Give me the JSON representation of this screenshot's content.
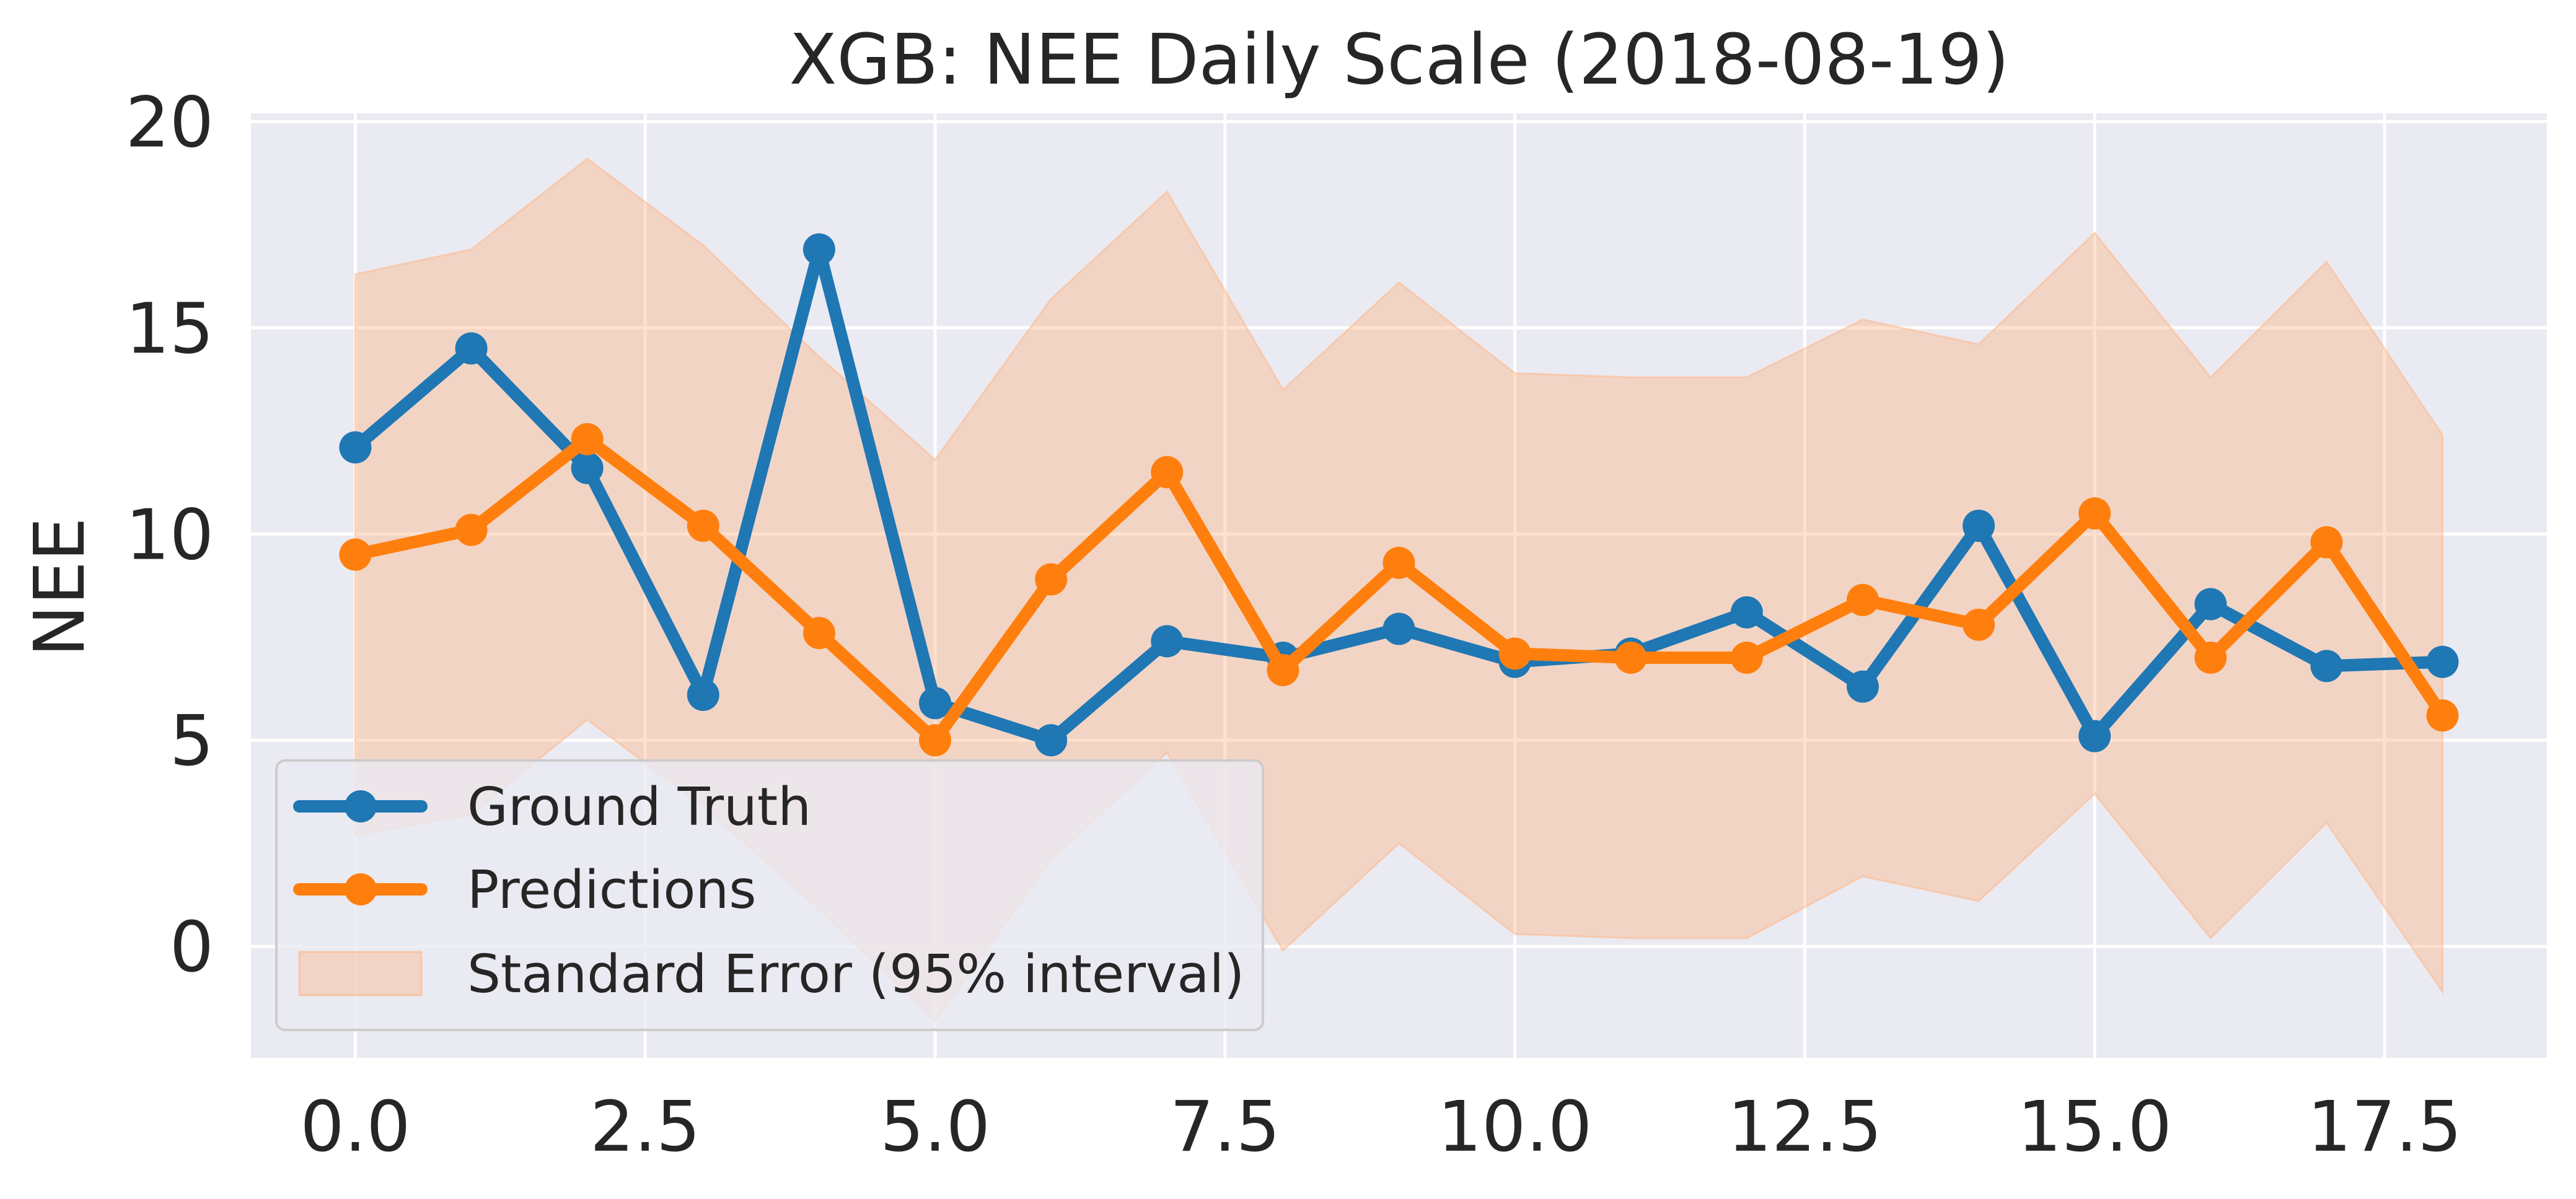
{
  "chart_data": {
    "type": "line",
    "title": "XGB: NEE Daily Scale (2018-08-19)",
    "xlabel": "",
    "ylabel": "NEE",
    "xlim": [
      -0.9,
      18.9
    ],
    "ylim": [
      -2.7,
      20.2
    ],
    "xticks": [
      0.0,
      2.5,
      5.0,
      7.5,
      10.0,
      12.5,
      15.0,
      17.5
    ],
    "xtick_labels": [
      "0.0",
      "2.5",
      "5.0",
      "7.5",
      "10.0",
      "12.5",
      "15.0",
      "17.5"
    ],
    "yticks": [
      0,
      5,
      10,
      15,
      20
    ],
    "ytick_labels": [
      "0",
      "5",
      "10",
      "15",
      "20"
    ],
    "grid": true,
    "background": "#eaeaf2",
    "legend_position": "lower-left",
    "x": [
      0,
      1,
      2,
      3,
      4,
      5,
      6,
      7,
      8,
      9,
      10,
      11,
      12,
      13,
      14,
      15,
      16,
      17,
      18
    ],
    "series": [
      {
        "name": "Ground Truth",
        "color": "#1f77b4",
        "values": [
          12.1,
          14.5,
          11.6,
          6.1,
          16.9,
          5.9,
          5.0,
          7.4,
          7.0,
          7.7,
          6.9,
          7.1,
          8.1,
          6.3,
          10.2,
          5.1,
          8.3,
          6.8,
          6.9
        ]
      },
      {
        "name": "Predictions",
        "color": "#ff7f0e",
        "values": [
          9.5,
          10.1,
          12.3,
          10.2,
          7.6,
          5.0,
          8.9,
          11.5,
          6.7,
          9.3,
          7.1,
          7.0,
          7.0,
          8.4,
          7.8,
          10.5,
          7.0,
          9.8,
          5.6
        ]
      }
    ],
    "band": {
      "name": "Standard Error (95% interval)",
      "color": "#ffb482",
      "lower": [
        2.7,
        3.2,
        5.5,
        3.4,
        0.9,
        -1.8,
        2.1,
        4.7,
        -0.1,
        2.5,
        0.3,
        0.2,
        0.2,
        1.7,
        1.1,
        3.7,
        0.2,
        3.0,
        -1.1
      ],
      "upper": [
        16.3,
        16.9,
        19.1,
        17.0,
        14.3,
        11.8,
        15.7,
        18.3,
        13.5,
        16.1,
        13.9,
        13.8,
        13.8,
        15.2,
        14.6,
        17.3,
        13.8,
        16.6,
        12.4
      ]
    }
  }
}
